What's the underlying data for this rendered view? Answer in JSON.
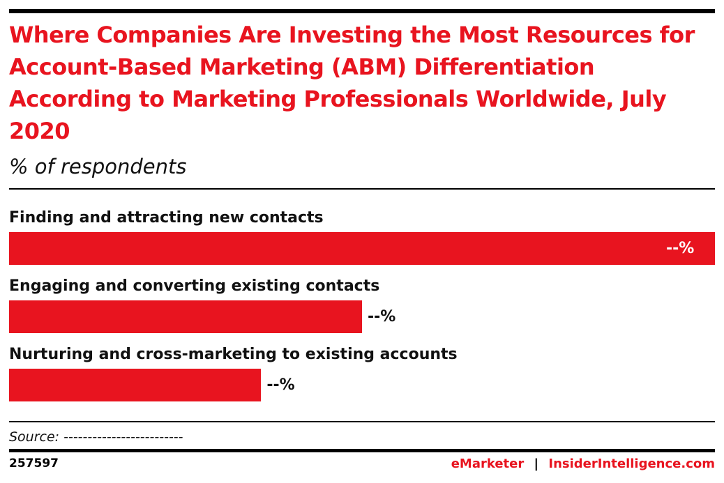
{
  "chart_data": {
    "type": "bar",
    "orientation": "horizontal",
    "title": "Where Companies Are Investing the Most Resources for Account-Based Marketing (ABM) Differentiation According to Marketing Professionals Worldwide, July 2020",
    "subtitle": "% of respondents",
    "categories": [
      "Finding and attracting new contacts",
      "Engaging and converting existing contacts",
      "Nurturing and cross-marketing to existing accounts"
    ],
    "values": [
      56,
      28,
      20
    ],
    "value_labels": [
      "--%",
      "--%",
      "--%"
    ],
    "color": "#e8141f",
    "source": "Source: -------------------------",
    "chart_id": "257597",
    "brand": "eMarketer",
    "separator": "|",
    "site": "InsiderIntelligence.com"
  }
}
